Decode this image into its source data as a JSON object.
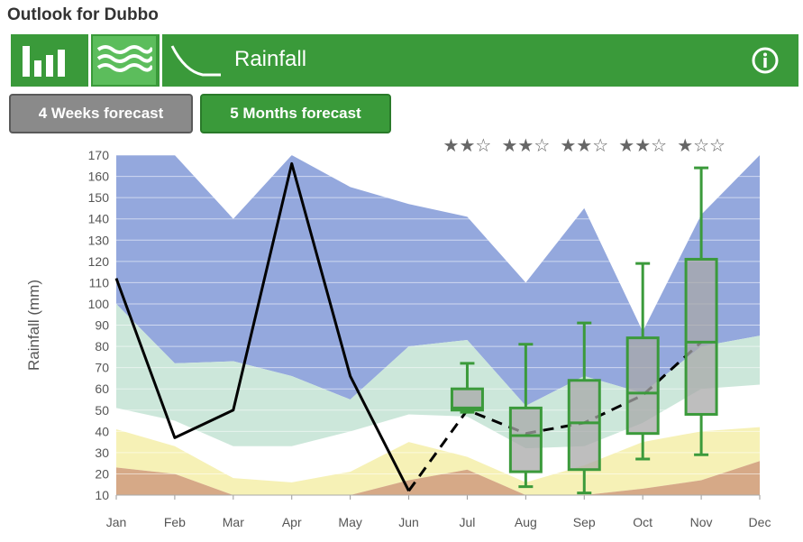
{
  "page_title": "Outlook for Dubbo",
  "toolbar": {
    "icons": [
      "bar-chart-icon",
      "rainfall-bands-icon",
      "decline-curve-icon"
    ],
    "label": "Rainfall",
    "info_icon": "info-icon"
  },
  "tabs": [
    {
      "label": "4 Weeks forecast",
      "active": false
    },
    {
      "label": "5 Months forecast",
      "active": true
    }
  ],
  "colors": {
    "green": "#3a9a3a",
    "band_top": "#8ea3db",
    "band_green": "#c9e6d8",
    "band_yellow": "#f5f0b2",
    "band_brown": "#d1a07a",
    "box_fill": "#a8a8a8",
    "box_stroke": "#3b9a3b"
  },
  "chart_data": {
    "type": "line",
    "ylabel": "Rainfall (mm)",
    "xlabel": "",
    "categories": [
      "Jan",
      "Feb",
      "Mar",
      "Apr",
      "May",
      "Jun",
      "Jul",
      "Aug",
      "Sep",
      "Oct",
      "Nov",
      "Dec"
    ],
    "ylim": [
      10,
      170
    ],
    "yticks": [
      10,
      20,
      30,
      40,
      50,
      60,
      70,
      80,
      90,
      100,
      110,
      120,
      130,
      140,
      150,
      160,
      170
    ],
    "grid": true,
    "bands": {
      "top": [
        170,
        170,
        140,
        170,
        155,
        147,
        141,
        110,
        145,
        87,
        142,
        170
      ],
      "upper": [
        100,
        72,
        73,
        66,
        55,
        80,
        83,
        52,
        66,
        58,
        80,
        85
      ],
      "middle": [
        51,
        45,
        33,
        33,
        40,
        48,
        47,
        32,
        33,
        44,
        60,
        62
      ],
      "lower": [
        41,
        33,
        18,
        16,
        21,
        35,
        28,
        16,
        24,
        35,
        40,
        42
      ],
      "bottom": [
        23,
        20,
        10,
        10,
        10,
        17,
        22,
        10,
        10,
        13,
        17,
        26
      ]
    },
    "series": [
      {
        "name": "",
        "style": "solid",
        "x": [
          "Jan",
          "Feb",
          "Mar",
          "Apr",
          "May",
          "Jun"
        ],
        "values": [
          112,
          37,
          50,
          166,
          66,
          12
        ]
      },
      {
        "name": "",
        "style": "dashed",
        "x": [
          "Jun",
          "Jul",
          "Aug",
          "Sep",
          "Oct",
          "Nov"
        ],
        "values": [
          12,
          50,
          39,
          44,
          57,
          82
        ]
      }
    ],
    "boxes": [
      {
        "month": "Jul",
        "min": 49,
        "q1": 50,
        "median": 51,
        "q3": 60,
        "max": 72
      },
      {
        "month": "Aug",
        "min": 14,
        "q1": 21,
        "median": 38,
        "q3": 51,
        "max": 81
      },
      {
        "month": "Sep",
        "min": 11,
        "q1": 22,
        "median": 44,
        "q3": 64,
        "max": 91
      },
      {
        "month": "Oct",
        "min": 27,
        "q1": 39,
        "median": 58,
        "q3": 84,
        "max": 119
      },
      {
        "month": "Nov",
        "min": 29,
        "q1": 48,
        "median": 82,
        "q3": 121,
        "max": 164
      }
    ],
    "confidence_stars": [
      {
        "month": "Jul",
        "filled": 2,
        "total": 3
      },
      {
        "month": "Aug",
        "filled": 2,
        "total": 3
      },
      {
        "month": "Sep",
        "filled": 2,
        "total": 3
      },
      {
        "month": "Oct",
        "filled": 2,
        "total": 3
      },
      {
        "month": "Nov",
        "filled": 1,
        "total": 3
      }
    ]
  }
}
